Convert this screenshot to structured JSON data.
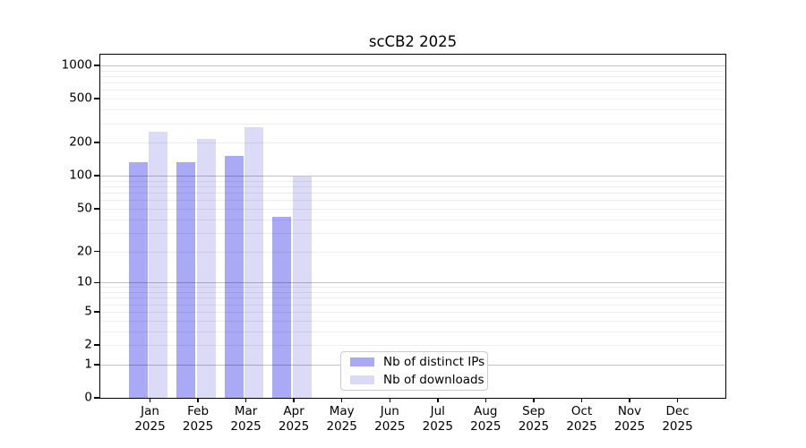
{
  "chart_data": {
    "type": "bar",
    "title": "scCB2 2025",
    "months": [
      "Jan",
      "Feb",
      "Mar",
      "Apr",
      "May",
      "Jun",
      "Jul",
      "Aug",
      "Sep",
      "Oct",
      "Nov",
      "Dec"
    ],
    "year": "2025",
    "series": [
      {
        "name": "Nb of distinct IPs",
        "color": "#a9a9f6",
        "values": [
          133,
          133,
          151,
          42,
          0,
          0,
          0,
          0,
          0,
          0,
          0,
          0
        ]
      },
      {
        "name": "Nb of downloads",
        "color": "#dbdbf7",
        "values": [
          251,
          216,
          276,
          98,
          0,
          0,
          0,
          0,
          0,
          0,
          0,
          0
        ]
      }
    ],
    "yscale": "log1p",
    "ylim": [
      0,
      1250
    ],
    "ytick_values": [
      1000,
      500,
      200,
      100,
      50,
      20,
      10,
      5,
      2,
      1,
      0
    ],
    "ytick_labels": [
      "1000",
      "500",
      "200",
      "100",
      "50",
      "20",
      "10",
      "5",
      "2",
      "1",
      "0"
    ],
    "grid": "horizontal log minor+major",
    "legend_position": "bottom-center"
  }
}
